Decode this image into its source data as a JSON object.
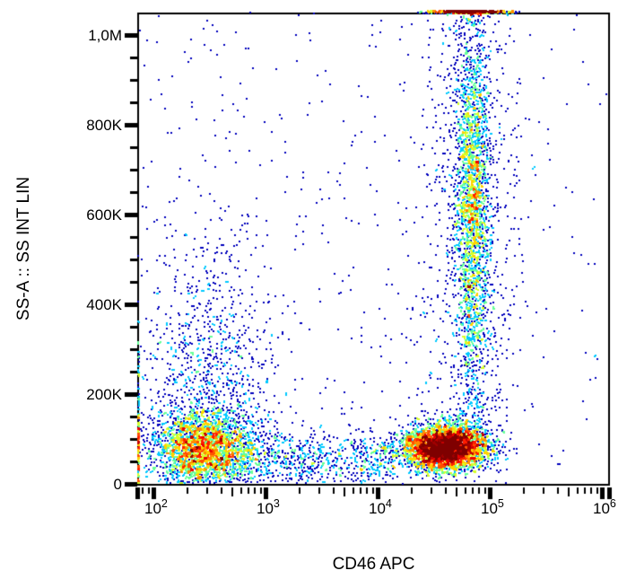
{
  "chart_data": {
    "type": "scatter",
    "subtype": "flow-cytometry-density-dot-plot",
    "title": "",
    "xlabel": "CD46 APC",
    "ylabel": "SS-A :: SS INT LIN",
    "x_scale": "log10",
    "x_domain_log10": [
      1.85,
      6.06
    ],
    "y_scale": "linear",
    "y_domain": [
      0,
      1052000
    ],
    "grid": false,
    "legend": false,
    "colormap": "jet",
    "density_color_low": "#0000d0",
    "density_color_high": "#ff0000",
    "frame_color": "#000000",
    "density_cap": 12,
    "seed": 42,
    "x_major_ticks": [
      {
        "value": 100,
        "base": "10",
        "exp": "2"
      },
      {
        "value": 1000,
        "base": "10",
        "exp": "3"
      },
      {
        "value": 10000,
        "base": "10",
        "exp": "4"
      },
      {
        "value": 100000,
        "base": "10",
        "exp": "5"
      },
      {
        "value": 1000000,
        "base": "10",
        "exp": "6"
      }
    ],
    "x_minor_multiples": [
      2,
      3,
      4,
      5,
      6,
      7,
      8,
      9
    ],
    "y_major_ticks": [
      {
        "value": 0,
        "label": "0"
      },
      {
        "value": 200000,
        "label": "200K"
      },
      {
        "value": 400000,
        "label": "400K"
      },
      {
        "value": 600000,
        "label": "600K"
      },
      {
        "value": 800000,
        "label": "800K"
      },
      {
        "value": 1000000,
        "label": "1,0M"
      }
    ],
    "y_minor_step": 50000,
    "populations": [
      {
        "name": "debris-lymphoid-cluster",
        "n": 2600,
        "x": {
          "dist": "lognormal",
          "mu": 2.44,
          "sigma": 0.22
        },
        "y": {
          "dist": "normal",
          "mu": 75000,
          "sigma": 42000,
          "min": 2000
        }
      },
      {
        "name": "low-ss-bridge",
        "n": 750,
        "x": {
          "dist": "loguniform",
          "min": 2.7,
          "max": 4.15
        },
        "y": {
          "dist": "normal",
          "mu": 55000,
          "sigma": 33000,
          "min": 2000
        }
      },
      {
        "name": "cd46-bright-low-ss-cluster",
        "n": 4200,
        "x": {
          "dist": "lognormal",
          "mu": 4.6,
          "sigma": 0.19
        },
        "y": {
          "dist": "normal",
          "mu": 82000,
          "sigma": 26000,
          "min": 5000
        }
      },
      {
        "name": "granulocyte-streak",
        "n": 2400,
        "x": {
          "dist": "lognormal",
          "mu": 4.84,
          "sigma": 0.075
        },
        "y": {
          "dist": "normal",
          "mu": 620000,
          "sigma": 215000,
          "min": 70000,
          "max": 1052000
        }
      },
      {
        "name": "streak-halo",
        "n": 800,
        "x": {
          "dist": "lognormal",
          "mu": 4.83,
          "sigma": 0.22
        },
        "y": {
          "dist": "uniform",
          "min": 90000,
          "max": 1052000
        }
      },
      {
        "name": "top-edge-pileup",
        "n": 700,
        "x": {
          "dist": "lognormal",
          "mu": 4.82,
          "sigma": 0.16
        },
        "y": {
          "dist": "edge-top"
        }
      },
      {
        "name": "left-scatter-column",
        "n": 950,
        "x": {
          "dist": "lognormal",
          "mu": 2.5,
          "sigma": 0.3
        },
        "y": {
          "dist": "halfnormal-up",
          "base": 90000,
          "sigma": 230000,
          "max": 1052000
        }
      },
      {
        "name": "sparse-background",
        "n": 420,
        "x": {
          "dist": "loguniform",
          "min": 1.86,
          "max": 5.3
        },
        "y": {
          "dist": "uniform",
          "min": 0,
          "max": 1052000
        }
      },
      {
        "name": "far-right-sparse",
        "n": 45,
        "x": {
          "dist": "loguniform",
          "min": 5.3,
          "max": 6.04
        },
        "y": {
          "dist": "uniform",
          "min": 0,
          "max": 1052000
        }
      },
      {
        "name": "left-edge-pileup",
        "n": 160,
        "x": {
          "dist": "edge-left"
        },
        "y": {
          "dist": "halfnormal-up",
          "base": 2000,
          "sigma": 130000,
          "max": 1052000
        }
      }
    ]
  }
}
